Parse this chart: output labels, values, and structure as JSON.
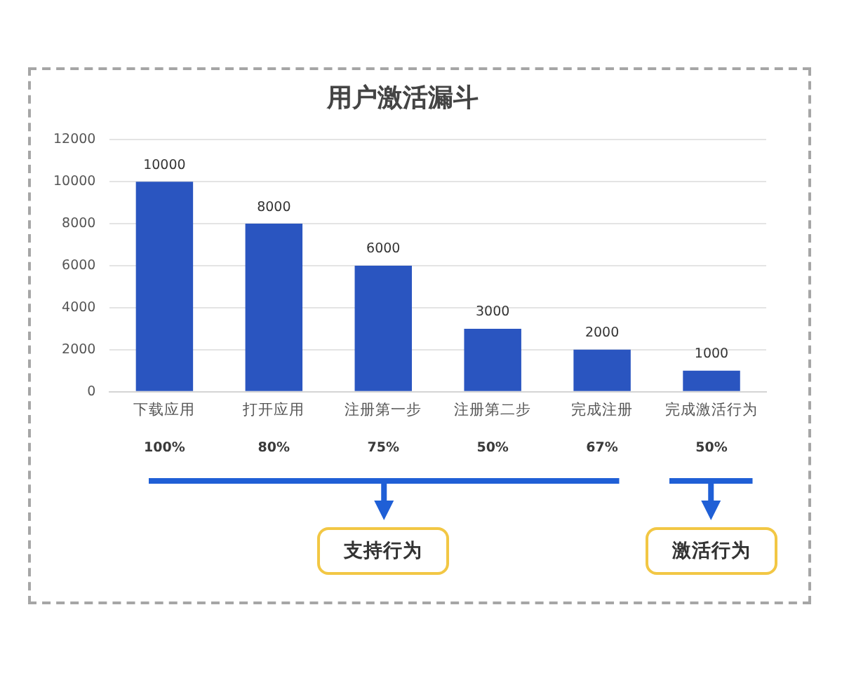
{
  "chart_data": {
    "type": "bar",
    "title": "用户激活漏斗",
    "categories": [
      "下载应用",
      "打开应用",
      "注册第一步",
      "注册第二步",
      "完成注册",
      "完成激活行为"
    ],
    "values": [
      10000,
      8000,
      6000,
      3000,
      2000,
      1000
    ],
    "color": "#2a55c0",
    "ylim": [
      0,
      12000
    ],
    "yticks": [
      0,
      2000,
      4000,
      6000,
      8000,
      10000,
      12000
    ],
    "grid": "y",
    "data_labels": true,
    "annotations": [
      "100%",
      "80%",
      "75%",
      "50%",
      "67%",
      "50%",
      "支持行为",
      "激活行为"
    ]
  }
}
